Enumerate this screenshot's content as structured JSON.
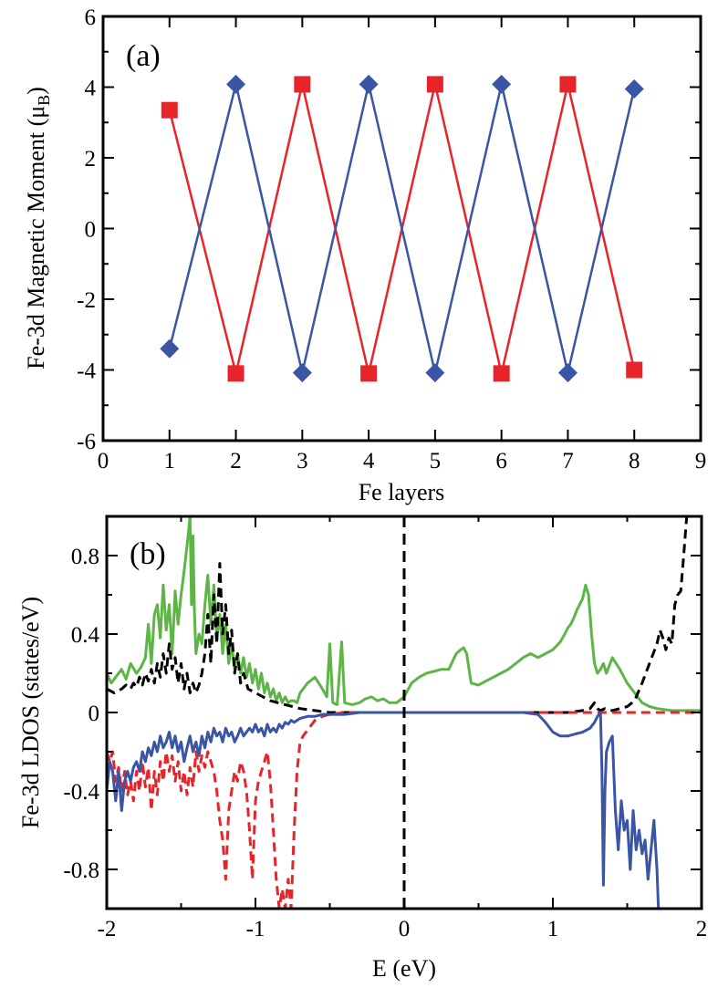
{
  "chart_data": [
    {
      "type": "line",
      "panel_label": "(a)",
      "xlabel": "Fe layers",
      "ylabel": "Fe-3d Magnetic Moment (μ",
      "ylabel_sub": "B",
      "ylabel_close": ")",
      "xlim": [
        0,
        9
      ],
      "ylim": [
        -6,
        6
      ],
      "x_ticks": [
        0,
        1,
        2,
        3,
        4,
        5,
        6,
        7,
        8,
        9
      ],
      "y_ticks": [
        -6,
        -4,
        -2,
        0,
        2,
        4,
        6
      ],
      "x_tick_labels": [
        "0",
        "1",
        "2",
        "3",
        "4",
        "5",
        "6",
        "7",
        "8",
        "9"
      ],
      "y_tick_labels": [
        "-6",
        "-4",
        "-2",
        "0",
        "2",
        "4",
        "6"
      ],
      "grid": false,
      "series": [
        {
          "color": "#e8242b",
          "marker": "square",
          "x": [
            1,
            2,
            3,
            4,
            5,
            6,
            7,
            8
          ],
          "y": [
            3.35,
            -4.1,
            4.08,
            -4.1,
            4.08,
            -4.1,
            4.08,
            -4.0
          ]
        },
        {
          "color": "#3a55a4",
          "marker": "diamond",
          "x": [
            1,
            2,
            3,
            4,
            5,
            6,
            7,
            8
          ],
          "y": [
            -3.4,
            4.08,
            -4.08,
            4.08,
            -4.08,
            4.08,
            -4.08,
            3.95
          ]
        }
      ]
    },
    {
      "type": "line",
      "panel_label": "(b)",
      "xlabel": "E (eV)",
      "ylabel": "Fe-3d LDOS (states/eV)",
      "xlim": [
        -2,
        2
      ],
      "ylim": [
        -1.0,
        1.0
      ],
      "x_ticks": [
        -2,
        -1,
        0,
        1,
        2
      ],
      "y_ticks": [
        -0.8,
        -0.4,
        0,
        0.4,
        0.8
      ],
      "x_tick_labels": [
        "-2",
        "-1",
        "0",
        "1",
        "2"
      ],
      "y_tick_labels": [
        "-0.8",
        "-0.4",
        "0",
        "0.4",
        "0.8"
      ],
      "grid": false,
      "fermi_level": 0,
      "series": [
        {
          "color": "#5cb545",
          "style": "solid",
          "x": [
            -2.0,
            -1.97,
            -1.94,
            -1.9,
            -1.87,
            -1.84,
            -1.8,
            -1.77,
            -1.74,
            -1.72,
            -1.7,
            -1.68,
            -1.66,
            -1.64,
            -1.62,
            -1.6,
            -1.58,
            -1.56,
            -1.54,
            -1.52,
            -1.5,
            -1.48,
            -1.46,
            -1.44,
            -1.43,
            -1.42,
            -1.41,
            -1.4,
            -1.38,
            -1.36,
            -1.34,
            -1.32,
            -1.3,
            -1.28,
            -1.26,
            -1.24,
            -1.22,
            -1.2,
            -1.18,
            -1.16,
            -1.14,
            -1.12,
            -1.1,
            -1.08,
            -1.06,
            -1.04,
            -1.02,
            -1.0,
            -0.98,
            -0.96,
            -0.94,
            -0.92,
            -0.9,
            -0.88,
            -0.86,
            -0.84,
            -0.82,
            -0.8,
            -0.78,
            -0.76,
            -0.74,
            -0.72,
            -0.7,
            -0.65,
            -0.6,
            -0.55,
            -0.52,
            -0.5,
            -0.48,
            -0.45,
            -0.42,
            -0.4,
            -0.35,
            -0.3,
            -0.28,
            -0.26,
            -0.22,
            -0.18,
            -0.14,
            -0.1,
            -0.05,
            0.0,
            0.05,
            0.1,
            0.15,
            0.2,
            0.25,
            0.3,
            0.35,
            0.38,
            0.4,
            0.42,
            0.45,
            0.5,
            0.55,
            0.6,
            0.65,
            0.7,
            0.75,
            0.8,
            0.85,
            0.9,
            0.95,
            1.0,
            1.05,
            1.08,
            1.1,
            1.12,
            1.14,
            1.16,
            1.18,
            1.2,
            1.22,
            1.24,
            1.26,
            1.28,
            1.3,
            1.32,
            1.34,
            1.36,
            1.4,
            1.45,
            1.5,
            1.55,
            1.6,
            1.65,
            1.7,
            1.8,
            1.9,
            2.0
          ],
          "y": [
            0.2,
            0.15,
            0.18,
            0.22,
            0.17,
            0.25,
            0.2,
            0.23,
            0.28,
            0.45,
            0.25,
            0.5,
            0.55,
            0.38,
            0.65,
            0.42,
            0.55,
            0.3,
            0.62,
            0.45,
            0.6,
            0.72,
            0.85,
            1.0,
            0.55,
            0.9,
            0.5,
            0.3,
            0.4,
            0.35,
            0.55,
            0.7,
            0.45,
            0.65,
            0.38,
            0.5,
            0.3,
            0.45,
            0.25,
            0.35,
            0.22,
            0.3,
            0.2,
            0.28,
            0.18,
            0.25,
            0.15,
            0.22,
            0.12,
            0.2,
            0.1,
            0.15,
            0.08,
            0.12,
            0.06,
            0.1,
            0.05,
            0.08,
            0.05,
            0.06,
            0.06,
            0.05,
            0.1,
            0.15,
            0.18,
            0.12,
            0.08,
            0.35,
            0.05,
            0.04,
            0.36,
            0.05,
            0.04,
            0.05,
            0.06,
            0.07,
            0.08,
            0.06,
            0.07,
            0.05,
            0.05,
            0.08,
            0.15,
            0.18,
            0.2,
            0.21,
            0.22,
            0.22,
            0.3,
            0.32,
            0.33,
            0.3,
            0.15,
            0.14,
            0.16,
            0.18,
            0.2,
            0.22,
            0.25,
            0.28,
            0.3,
            0.28,
            0.3,
            0.32,
            0.36,
            0.4,
            0.43,
            0.45,
            0.48,
            0.52,
            0.55,
            0.58,
            0.65,
            0.6,
            0.4,
            0.25,
            0.2,
            0.22,
            0.25,
            0.2,
            0.28,
            0.22,
            0.15,
            0.1,
            0.05,
            0.03,
            0.02,
            0.01,
            0.01,
            0.01
          ]
        },
        {
          "color": "#000000",
          "style": "dashed",
          "x": [
            -2.0,
            -1.95,
            -1.9,
            -1.87,
            -1.84,
            -1.82,
            -1.8,
            -1.78,
            -1.76,
            -1.74,
            -1.72,
            -1.7,
            -1.68,
            -1.66,
            -1.64,
            -1.62,
            -1.6,
            -1.58,
            -1.56,
            -1.54,
            -1.52,
            -1.5,
            -1.48,
            -1.46,
            -1.44,
            -1.42,
            -1.4,
            -1.38,
            -1.36,
            -1.34,
            -1.32,
            -1.3,
            -1.28,
            -1.26,
            -1.24,
            -1.22,
            -1.2,
            -1.18,
            -1.16,
            -1.14,
            -1.12,
            -1.1,
            -1.08,
            -1.05,
            -1.0,
            -0.95,
            -0.9,
            -0.85,
            -0.8,
            -0.75,
            -0.7,
            -0.6,
            -0.5,
            -0.4,
            -0.3,
            -0.2,
            -0.1,
            0.0,
            0.2,
            0.4,
            0.6,
            0.8,
            1.0,
            1.1,
            1.2,
            1.25,
            1.28,
            1.3,
            1.32,
            1.35,
            1.4,
            1.45,
            1.5,
            1.55,
            1.6,
            1.65,
            1.7,
            1.72,
            1.74,
            1.76,
            1.78,
            1.8,
            1.82,
            1.84,
            1.86,
            1.88,
            1.9
          ],
          "y": [
            0.12,
            0.1,
            0.12,
            0.14,
            0.12,
            0.15,
            0.13,
            0.18,
            0.14,
            0.2,
            0.16,
            0.22,
            0.15,
            0.25,
            0.18,
            0.3,
            0.2,
            0.35,
            0.22,
            0.28,
            0.15,
            0.25,
            0.12,
            0.2,
            0.1,
            0.15,
            0.1,
            0.14,
            0.2,
            0.3,
            0.5,
            0.25,
            0.6,
            0.35,
            0.76,
            0.4,
            0.55,
            0.3,
            0.42,
            0.2,
            0.3,
            0.15,
            0.2,
            0.12,
            0.1,
            0.08,
            0.06,
            0.05,
            0.04,
            0.03,
            0.02,
            0.01,
            0.0,
            0.0,
            0.0,
            0.0,
            0.0,
            0.0,
            0.0,
            0.0,
            0.0,
            0.0,
            0.0,
            0.0,
            0.01,
            0.02,
            0.05,
            0.02,
            0.01,
            0.02,
            0.01,
            0.02,
            0.03,
            0.06,
            0.15,
            0.25,
            0.35,
            0.42,
            0.38,
            0.32,
            0.38,
            0.35,
            0.55,
            0.6,
            0.62,
            0.8,
            1.0
          ]
        },
        {
          "color": "#e8242b",
          "style": "dashed",
          "x": [
            -2.0,
            -1.98,
            -1.96,
            -1.94,
            -1.92,
            -1.9,
            -1.88,
            -1.86,
            -1.84,
            -1.82,
            -1.8,
            -1.78,
            -1.76,
            -1.74,
            -1.72,
            -1.7,
            -1.68,
            -1.66,
            -1.64,
            -1.62,
            -1.6,
            -1.58,
            -1.56,
            -1.54,
            -1.52,
            -1.5,
            -1.48,
            -1.46,
            -1.44,
            -1.42,
            -1.4,
            -1.38,
            -1.36,
            -1.34,
            -1.32,
            -1.3,
            -1.28,
            -1.26,
            -1.24,
            -1.22,
            -1.2,
            -1.18,
            -1.16,
            -1.14,
            -1.12,
            -1.1,
            -1.08,
            -1.06,
            -1.04,
            -1.02,
            -1.0,
            -0.98,
            -0.96,
            -0.94,
            -0.92,
            -0.9,
            -0.88,
            -0.86,
            -0.84,
            -0.82,
            -0.8,
            -0.78,
            -0.76,
            -0.74,
            -0.72,
            -0.7,
            -0.68,
            -0.66,
            -0.64,
            -0.62,
            -0.6,
            -0.55,
            -0.5,
            -0.4,
            -0.3,
            -0.2,
            0.0,
            0.5,
            1.0,
            1.5,
            2.0
          ],
          "y": [
            -0.2,
            -0.25,
            -0.2,
            -0.35,
            -0.28,
            -0.4,
            -0.3,
            -0.42,
            -0.35,
            -0.45,
            -0.3,
            -0.4,
            -0.25,
            -0.38,
            -0.28,
            -0.5,
            -0.3,
            -0.42,
            -0.25,
            -0.35,
            -0.2,
            -0.3,
            -0.22,
            -0.35,
            -0.25,
            -0.4,
            -0.3,
            -0.42,
            -0.28,
            -0.38,
            -0.2,
            -0.3,
            -0.22,
            -0.28,
            -0.2,
            -0.25,
            -0.3,
            -0.4,
            -0.55,
            -0.65,
            -0.85,
            -0.5,
            -0.4,
            -0.3,
            -0.35,
            -0.25,
            -0.3,
            -0.4,
            -0.6,
            -0.85,
            -0.45,
            -0.35,
            -0.3,
            -0.25,
            -0.2,
            -0.35,
            -0.6,
            -0.85,
            -1.0,
            -0.9,
            -1.0,
            -0.85,
            -1.0,
            -0.6,
            -0.3,
            -0.15,
            -0.12,
            -0.1,
            -0.08,
            -0.06,
            -0.04,
            -0.02,
            -0.01,
            0.0,
            0.0,
            0.0,
            0.0,
            0.0,
            0.0,
            0.0,
            0.0
          ]
        },
        {
          "color": "#3a55a4",
          "style": "solid",
          "x": [
            -2.0,
            -1.98,
            -1.96,
            -1.94,
            -1.92,
            -1.9,
            -1.88,
            -1.86,
            -1.84,
            -1.82,
            -1.8,
            -1.78,
            -1.76,
            -1.74,
            -1.72,
            -1.7,
            -1.68,
            -1.66,
            -1.64,
            -1.62,
            -1.6,
            -1.58,
            -1.56,
            -1.54,
            -1.52,
            -1.5,
            -1.48,
            -1.46,
            -1.44,
            -1.42,
            -1.4,
            -1.38,
            -1.36,
            -1.34,
            -1.32,
            -1.3,
            -1.28,
            -1.26,
            -1.24,
            -1.22,
            -1.2,
            -1.18,
            -1.16,
            -1.14,
            -1.12,
            -1.1,
            -1.08,
            -1.06,
            -1.04,
            -1.02,
            -1.0,
            -0.98,
            -0.96,
            -0.94,
            -0.92,
            -0.9,
            -0.88,
            -0.86,
            -0.84,
            -0.82,
            -0.8,
            -0.78,
            -0.76,
            -0.74,
            -0.72,
            -0.7,
            -0.65,
            -0.6,
            -0.55,
            -0.5,
            -0.4,
            -0.3,
            -0.2,
            0.0,
            0.2,
            0.4,
            0.6,
            0.8,
            0.9,
            0.95,
            1.0,
            1.05,
            1.1,
            1.15,
            1.2,
            1.25,
            1.28,
            1.3,
            1.32,
            1.33,
            1.34,
            1.35,
            1.36,
            1.38,
            1.4,
            1.42,
            1.44,
            1.46,
            1.48,
            1.5,
            1.52,
            1.54,
            1.56,
            1.58,
            1.6,
            1.62,
            1.64,
            1.66,
            1.68,
            1.7,
            1.71
          ],
          "y": [
            -0.4,
            -0.25,
            -0.3,
            -0.45,
            -0.3,
            -0.5,
            -0.35,
            -0.3,
            -0.35,
            -0.28,
            -0.25,
            -0.3,
            -0.2,
            -0.25,
            -0.18,
            -0.22,
            -0.15,
            -0.2,
            -0.12,
            -0.18,
            -0.15,
            -0.1,
            -0.18,
            -0.12,
            -0.2,
            -0.15,
            -0.25,
            -0.18,
            -0.12,
            -0.2,
            -0.15,
            -0.22,
            -0.12,
            -0.18,
            -0.1,
            -0.15,
            -0.08,
            -0.12,
            -0.1,
            -0.15,
            -0.08,
            -0.12,
            -0.1,
            -0.15,
            -0.12,
            -0.08,
            -0.12,
            -0.1,
            -0.08,
            -0.1,
            -0.06,
            -0.1,
            -0.08,
            -0.12,
            -0.06,
            -0.1,
            -0.08,
            -0.1,
            -0.06,
            -0.08,
            -0.05,
            -0.06,
            -0.04,
            -0.05,
            -0.04,
            -0.03,
            -0.02,
            -0.02,
            -0.01,
            -0.01,
            -0.01,
            0.0,
            0.0,
            0.0,
            0.0,
            0.0,
            0.0,
            0.0,
            -0.01,
            -0.05,
            -0.1,
            -0.12,
            -0.12,
            -0.11,
            -0.1,
            -0.08,
            -0.05,
            -0.02,
            0.0,
            -0.3,
            -0.88,
            -0.4,
            -0.2,
            -0.15,
            -0.12,
            -0.5,
            -0.7,
            -0.45,
            -0.6,
            -0.55,
            -0.8,
            -0.5,
            -0.7,
            -0.6,
            -0.72,
            -0.65,
            -0.85,
            -0.7,
            -0.55,
            -0.8,
            -1.0
          ]
        }
      ]
    }
  ]
}
